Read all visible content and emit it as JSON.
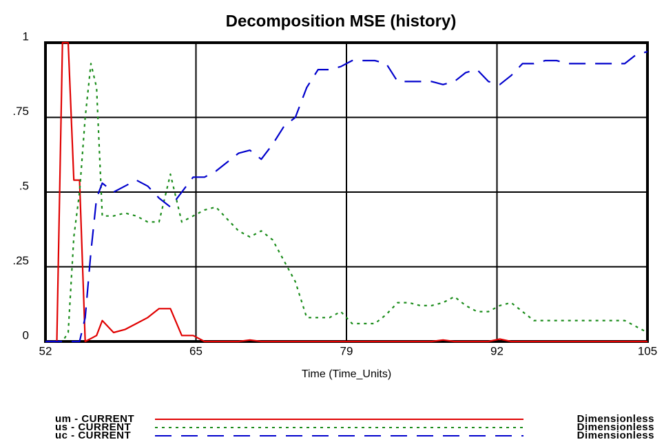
{
  "chart_data": {
    "type": "line",
    "title": "Decomposition MSE (history)",
    "x_label": "Time (Time_Units)",
    "x": [
      52,
      52.5,
      53,
      53.5,
      54,
      54.5,
      55,
      55.5,
      56,
      56.5,
      57,
      58,
      59,
      60,
      61,
      62,
      63,
      64,
      65,
      66,
      67,
      68,
      69,
      70,
      71,
      72,
      73,
      74,
      75,
      76,
      77,
      78,
      79,
      80,
      81,
      82,
      83,
      84,
      85,
      86,
      87,
      88,
      89,
      90,
      91,
      92,
      93,
      94,
      95,
      96,
      97,
      98,
      99,
      100,
      101,
      102,
      103,
      104,
      105
    ],
    "xlim": [
      52,
      105
    ],
    "xticks": [
      52,
      {
        "value": 65.25,
        "label": "65"
      },
      {
        "value": 78.5,
        "label": "79"
      },
      {
        "value": 91.75,
        "label": "92"
      },
      105
    ],
    "ylim": [
      0,
      1
    ],
    "yticks": [
      0,
      {
        "value": 0.25,
        "label": ".25"
      },
      {
        "value": 0.5,
        "label": ".5"
      },
      {
        "value": 0.75,
        "label": ".75"
      },
      1
    ],
    "grid": true,
    "series": [
      {
        "name": "um - CURRENT",
        "units": "Dimensionless",
        "color": "#e00000",
        "values": [
          0,
          0,
          0,
          1,
          1,
          0.54,
          0.54,
          0,
          0.01,
          0.02,
          0.07,
          0.03,
          0.04,
          0.06,
          0.08,
          0.11,
          0.11,
          0.02,
          0.02,
          0,
          0,
          0,
          0,
          0.005,
          0,
          0,
          0,
          0,
          0,
          0,
          0,
          0,
          0,
          0,
          0,
          0,
          0,
          0,
          0,
          0,
          0.005,
          0,
          0,
          0,
          0,
          0.008,
          0,
          0,
          0,
          0,
          0,
          0,
          0,
          0,
          0,
          0,
          0,
          0,
          0
        ]
      },
      {
        "name": "us - CURRENT",
        "units": "Dimensionless",
        "color": "#1a8c1a",
        "values": [
          0,
          0,
          0,
          0,
          0.03,
          0.35,
          0.5,
          0.75,
          0.93,
          0.85,
          0.42,
          0.42,
          0.43,
          0.42,
          0.4,
          0.4,
          0.56,
          0.4,
          0.42,
          0.44,
          0.45,
          0.41,
          0.37,
          0.35,
          0.37,
          0.34,
          0.27,
          0.2,
          0.08,
          0.08,
          0.08,
          0.1,
          0.06,
          0.06,
          0.06,
          0.09,
          0.13,
          0.13,
          0.12,
          0.12,
          0.13,
          0.15,
          0.12,
          0.1,
          0.1,
          0.12,
          0.13,
          0.1,
          0.07,
          0.07,
          0.07,
          0.07,
          0.07,
          0.07,
          0.07,
          0.07,
          0.07,
          0.05,
          0.03
        ]
      },
      {
        "name": "uc - CURRENT",
        "units": "Dimensionless",
        "color": "#0000cc",
        "values": [
          0,
          0,
          0,
          0,
          0,
          0,
          0,
          0.08,
          0.3,
          0.48,
          0.53,
          0.5,
          0.52,
          0.54,
          0.52,
          0.48,
          0.45,
          0.5,
          0.55,
          0.55,
          0.57,
          0.6,
          0.63,
          0.64,
          0.61,
          0.66,
          0.72,
          0.75,
          0.85,
          0.91,
          0.91,
          0.92,
          0.94,
          0.94,
          0.94,
          0.93,
          0.87,
          0.87,
          0.87,
          0.87,
          0.86,
          0.87,
          0.9,
          0.91,
          0.87,
          0.86,
          0.89,
          0.93,
          0.93,
          0.94,
          0.94,
          0.93,
          0.93,
          0.93,
          0.93,
          0.93,
          0.93,
          0.96,
          0.97
        ]
      }
    ]
  }
}
